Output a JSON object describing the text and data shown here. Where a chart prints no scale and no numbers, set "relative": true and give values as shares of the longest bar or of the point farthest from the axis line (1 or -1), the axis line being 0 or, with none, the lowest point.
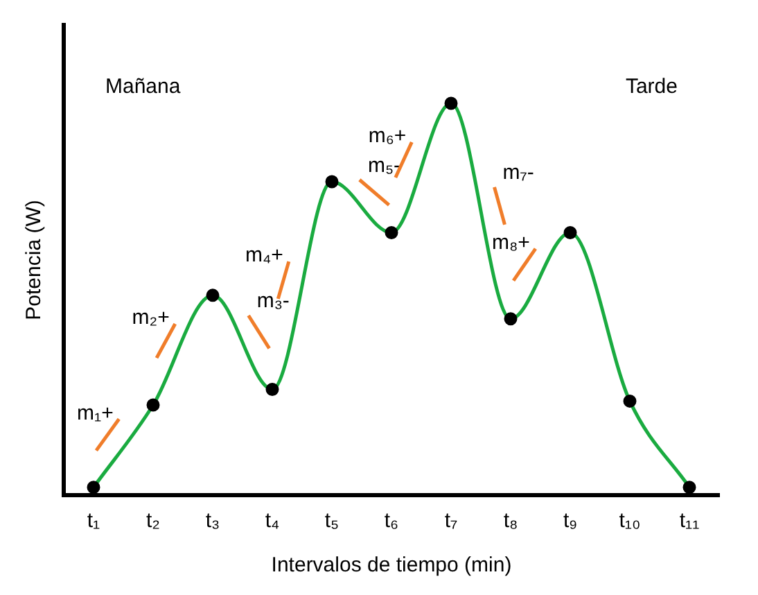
{
  "chart_data": {
    "type": "line",
    "relative": true,
    "xlabel": "Intervalos de tiempo (min)",
    "ylabel": "Potencia (W)",
    "categories": [
      "t₁",
      "t₂",
      "t₃",
      "t₄",
      "t₅",
      "t₆",
      "t₇",
      "t₈",
      "t₉",
      "t₁₀",
      "t₁₁"
    ],
    "series": [
      {
        "color": "#1aab40",
        "values": [
          0.02,
          0.23,
          0.51,
          0.27,
          0.8,
          0.67,
          1,
          0.45,
          0.67,
          0.24,
          0.02
        ]
      }
    ],
    "annotations": [
      "Mañana",
      "Tarde",
      "m₁+",
      "m₂+",
      "m₃-",
      "m₄+",
      "m₅-",
      "m₆+",
      "m₇-",
      "m₈+"
    ],
    "marker": "circle",
    "line_style": "solid",
    "grid": false,
    "legend": false
  }
}
